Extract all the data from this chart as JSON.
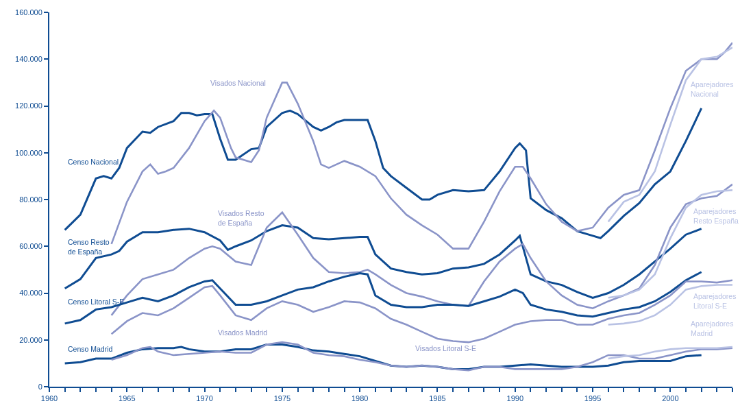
{
  "chart_data": {
    "type": "line",
    "xlim": [
      1960,
      2004
    ],
    "xticks": [
      1960,
      {
        "value": 1961,
        "label": null
      },
      {
        "value": 1962,
        "label": null
      },
      {
        "value": 1963,
        "label": null
      },
      {
        "value": 1964,
        "label": null
      },
      1965,
      {
        "value": 1966,
        "label": null
      },
      {
        "value": 1967,
        "label": null
      },
      {
        "value": 1968,
        "label": null
      },
      {
        "value": 1969,
        "label": null
      },
      1970,
      {
        "value": 1971,
        "label": null
      },
      {
        "value": 1972,
        "label": null
      },
      {
        "value": 1973,
        "label": null
      },
      {
        "value": 1974,
        "label": null
      },
      1975,
      {
        "value": 1976,
        "label": null
      },
      {
        "value": 1977,
        "label": null
      },
      {
        "value": 1978,
        "label": null
      },
      {
        "value": 1979,
        "label": null
      },
      1980,
      {
        "value": 1981,
        "label": null
      },
      {
        "value": 1982,
        "label": null
      },
      {
        "value": 1983,
        "label": null
      },
      {
        "value": 1984,
        "label": null
      },
      1985,
      {
        "value": 1986,
        "label": null
      },
      {
        "value": 1987,
        "label": null
      },
      {
        "value": 1988,
        "label": null
      },
      {
        "value": 1989,
        "label": null
      },
      1990,
      {
        "value": 1991,
        "label": null
      },
      {
        "value": 1992,
        "label": null
      },
      {
        "value": 1993,
        "label": null
      },
      {
        "value": 1994,
        "label": null
      },
      1995,
      {
        "value": 1996,
        "label": null
      },
      {
        "value": 1997,
        "label": null
      },
      {
        "value": 1998,
        "label": null
      },
      {
        "value": 1999,
        "label": null
      },
      2000,
      {
        "value": 2001,
        "label": null
      },
      {
        "value": 2002,
        "label": null
      },
      {
        "value": 2003,
        "label": null
      },
      {
        "value": 2004,
        "label": null
      }
    ],
    "ylim": [
      0,
      160000
    ],
    "yticks": [
      0,
      {
        "value": 20000,
        "label": "20.000"
      },
      {
        "value": 40000,
        "label": "40.000"
      },
      {
        "value": 60000,
        "label": "60.000"
      },
      {
        "value": 80000,
        "label": "80.000"
      },
      {
        "value": 100000,
        "label": "100.000"
      },
      {
        "value": 120000,
        "label": "120.000"
      },
      {
        "value": 140000,
        "label": "140.000"
      },
      {
        "value": 160000,
        "label": "160.000"
      }
    ],
    "grid": false,
    "legend": false,
    "marker": "none",
    "line_style": "solid",
    "series": [
      {
        "name": "Censo Nacional",
        "color": "#0f4c92",
        "x": [
          1961,
          1962,
          1963,
          1963.5,
          1964,
          1964.5,
          1965,
          1966,
          1966.5,
          1967,
          1968,
          1968.5,
          1969,
          1969.5,
          1970,
          1970.5,
          1971,
          1971.5,
          1972,
          1973,
          1973.5,
          1974,
          1975,
          1975.5,
          1976,
          1977,
          1977.5,
          1978,
          1978.5,
          1979,
          1980,
          1980.5,
          1981,
          1981.5,
          1982,
          1983,
          1984,
          1984.5,
          1985,
          1986,
          1987,
          1988,
          1989,
          1990,
          1990.3,
          1990.7,
          1991,
          1992,
          1993,
          1994,
          1995,
          1995.5,
          1996,
          1997,
          1998,
          1999,
          2000,
          2001,
          2002
        ],
        "values": [
          67000,
          73500,
          89000,
          90000,
          89000,
          93500,
          102000,
          109000,
          108500,
          111000,
          113500,
          117000,
          117000,
          116000,
          116500,
          116500,
          106000,
          97000,
          97000,
          101500,
          102000,
          111000,
          117000,
          118000,
          116500,
          111000,
          109500,
          111000,
          113000,
          114000,
          114000,
          114000,
          105000,
          93500,
          90000,
          85000,
          80000,
          80000,
          82000,
          84000,
          83500,
          84000,
          92000,
          102000,
          104000,
          101000,
          80500,
          75500,
          72000,
          66500,
          64500,
          63500,
          66500,
          73000,
          78500,
          86500,
          92000,
          105000,
          119000
        ]
      },
      {
        "name": "Visados Nacional",
        "color": "#8a94c8",
        "x": [
          1964,
          1965,
          1966,
          1966.5,
          1967,
          1967.5,
          1968,
          1969,
          1970,
          1970.6,
          1971,
          1971.7,
          1972,
          1973,
          1973.5,
          1974,
          1975,
          1975.3,
          1976,
          1977,
          1977.5,
          1978,
          1979,
          1980,
          1981,
          1982,
          1983,
          1984,
          1985,
          1986,
          1987,
          1988,
          1989,
          1990,
          1990.5,
          1991,
          1992,
          1993,
          1994,
          1995,
          1996,
          1997,
          1998,
          1999,
          2000,
          2001,
          2002,
          2003,
          2003.5,
          2004
        ],
        "values": [
          61000,
          79000,
          92000,
          95000,
          91000,
          92000,
          93500,
          102000,
          113500,
          118000,
          115000,
          102000,
          98000,
          96000,
          101000,
          115000,
          130000,
          130000,
          121000,
          105000,
          95000,
          93500,
          96500,
          94000,
          90000,
          80500,
          73500,
          69000,
          65000,
          59000,
          59000,
          70500,
          83500,
          94000,
          94000,
          89000,
          78000,
          70500,
          66500,
          68000,
          76500,
          82000,
          84000,
          101000,
          119000,
          135000,
          140000,
          140000,
          143000,
          147000
        ]
      },
      {
        "name": "Aparejadores\nNacional",
        "color": "#b9c2e4",
        "x": [
          1996,
          1997,
          1998,
          1999,
          2000,
          2001,
          2002,
          2003,
          2004
        ],
        "values": [
          70500,
          79000,
          82000,
          92000,
          112000,
          131000,
          140000,
          141000,
          145000
        ]
      },
      {
        "name": "Censo Resto\nde España",
        "color": "#0f4c92",
        "x": [
          1961,
          1962,
          1963,
          1964,
          1964.5,
          1965,
          1966,
          1967,
          1968,
          1969,
          1970,
          1971,
          1971.5,
          1972,
          1973,
          1974,
          1975,
          1976,
          1977,
          1978,
          1979,
          1980,
          1980.5,
          1981,
          1982,
          1983,
          1984,
          1985,
          1986,
          1987,
          1988,
          1989,
          1990,
          1990.3,
          1991,
          1992,
          1993,
          1994,
          1995,
          1996,
          1997,
          1998,
          1999,
          2000,
          2001,
          2002
        ],
        "values": [
          42000,
          46000,
          55000,
          56500,
          58000,
          62000,
          66000,
          66000,
          67000,
          67500,
          66000,
          62500,
          58500,
          60000,
          62500,
          66500,
          69000,
          68000,
          63500,
          63000,
          63500,
          64000,
          64000,
          56500,
          50500,
          49000,
          48000,
          48500,
          50500,
          51000,
          52500,
          56500,
          62500,
          64500,
          48000,
          45000,
          43500,
          40500,
          38000,
          40000,
          43500,
          48000,
          53500,
          59000,
          65000,
          67500
        ]
      },
      {
        "name": "Visados Resto\nde España",
        "color": "#8a94c8",
        "x": [
          1964,
          1965,
          1966,
          1967,
          1968,
          1969,
          1970,
          1970.5,
          1971,
          1972,
          1973,
          1974,
          1975,
          1976,
          1977,
          1978,
          1979,
          1980,
          1980.5,
          1981,
          1982,
          1983,
          1984,
          1985,
          1986,
          1987,
          1988,
          1989,
          1990,
          1990.5,
          1991,
          1992,
          1993,
          1994,
          1995,
          1996,
          1997,
          1998,
          1999,
          2000,
          2001,
          2002,
          2003,
          2004
        ],
        "values": [
          30500,
          39000,
          46000,
          48000,
          50000,
          55000,
          59000,
          60000,
          59000,
          53500,
          52000,
          68000,
          74500,
          65000,
          55000,
          49000,
          48500,
          49000,
          50000,
          48000,
          43500,
          40000,
          38500,
          36500,
          35000,
          34500,
          45000,
          53500,
          59000,
          61000,
          55000,
          45000,
          39000,
          35000,
          33500,
          36500,
          39000,
          42000,
          52000,
          68000,
          78000,
          80500,
          81500,
          86500
        ]
      },
      {
        "name": "Aparejadores\nResto España",
        "color": "#b9c2e4",
        "x": [
          1996,
          1997,
          1998,
          1999,
          2000,
          2001,
          2002,
          2003,
          2004
        ],
        "values": [
          38000,
          39000,
          41500,
          48000,
          63500,
          76500,
          82000,
          83500,
          84000
        ]
      },
      {
        "name": "Censo Litoral S-E",
        "color": "#0f4c92",
        "x": [
          1961,
          1962,
          1963,
          1964,
          1965,
          1966,
          1967,
          1968,
          1969,
          1970,
          1970.5,
          1971,
          1972,
          1973,
          1974,
          1975,
          1976,
          1977,
          1978,
          1979,
          1980,
          1980.5,
          1981,
          1982,
          1983,
          1984,
          1985,
          1986,
          1987,
          1988,
          1989,
          1990,
          1990.5,
          1991,
          1992,
          1993,
          1994,
          1995,
          1996,
          1997,
          1998,
          1999,
          2000,
          2001,
          2002
        ],
        "values": [
          27000,
          28500,
          33000,
          34000,
          36000,
          38000,
          36500,
          39000,
          42500,
          45000,
          45500,
          42000,
          35000,
          35000,
          36500,
          39000,
          41500,
          42500,
          45000,
          47000,
          48500,
          48000,
          39000,
          35000,
          34000,
          34000,
          35000,
          35000,
          34500,
          36500,
          38500,
          41500,
          40000,
          35000,
          33000,
          32000,
          30500,
          30000,
          31500,
          33000,
          34000,
          36500,
          40500,
          45500,
          49000
        ]
      },
      {
        "name": "Visados Litoral S-E",
        "color": "#8a94c8",
        "x": [
          1964,
          1965,
          1966,
          1967,
          1968,
          1969,
          1970,
          1970.5,
          1971,
          1972,
          1973,
          1974,
          1975,
          1976,
          1977,
          1978,
          1979,
          1980,
          1981,
          1982,
          1983,
          1984,
          1985,
          1986,
          1987,
          1988,
          1989,
          1990,
          1991,
          1992,
          1993,
          1994,
          1995,
          1996,
          1997,
          1998,
          1999,
          2000,
          2001,
          2002,
          2003,
          2004
        ],
        "values": [
          22500,
          28000,
          31500,
          30500,
          33500,
          38000,
          42500,
          43000,
          39000,
          30500,
          28500,
          33500,
          36500,
          35000,
          32000,
          34000,
          36500,
          36000,
          33500,
          29000,
          26500,
          23500,
          20500,
          19500,
          19000,
          20500,
          23500,
          26500,
          28000,
          28500,
          28500,
          26500,
          26500,
          29000,
          30500,
          31500,
          35000,
          39000,
          45000,
          45000,
          44500,
          45500
        ]
      },
      {
        "name": "Aparejadores\nLitoral S-E",
        "color": "#b9c2e4",
        "x": [
          1996,
          1997,
          1998,
          1999,
          2000,
          2001,
          2002,
          2003,
          2004
        ],
        "values": [
          26500,
          27000,
          28000,
          30500,
          35000,
          41500,
          43000,
          43500,
          43500
        ]
      },
      {
        "name": "Censo Madrid",
        "color": "#0f4c92",
        "x": [
          1961,
          1962,
          1963,
          1964,
          1965,
          1966,
          1967,
          1968,
          1968.5,
          1969,
          1970,
          1971,
          1972,
          1973,
          1974,
          1975,
          1976,
          1977,
          1978,
          1979,
          1980,
          1981,
          1982,
          1983,
          1984,
          1985,
          1986,
          1987,
          1988,
          1989,
          1990,
          1991,
          1992,
          1993,
          1994,
          1995,
          1996,
          1997,
          1998,
          1999,
          2000,
          2001,
          2002
        ],
        "values": [
          10000,
          10500,
          12000,
          12000,
          14500,
          16000,
          16500,
          16500,
          17000,
          16000,
          15000,
          15000,
          16000,
          16000,
          18000,
          18000,
          17000,
          15500,
          15000,
          14000,
          13000,
          11000,
          9000,
          8500,
          9000,
          8500,
          7500,
          7500,
          8500,
          8500,
          9000,
          9500,
          9000,
          8500,
          8500,
          8500,
          9000,
          10500,
          11000,
          11000,
          11000,
          13000,
          13500
        ]
      },
      {
        "name": "Visados Madrid",
        "color": "#8a94c8",
        "x": [
          1964,
          1965,
          1966,
          1966.5,
          1967,
          1968,
          1969,
          1970,
          1971,
          1972,
          1973,
          1974,
          1975,
          1976,
          1977,
          1978,
          1979,
          1980,
          1981,
          1982,
          1983,
          1984,
          1985,
          1986,
          1987,
          1988,
          1989,
          1990,
          1991,
          1992,
          1993,
          1994,
          1995,
          1996,
          1997,
          1998,
          1999,
          2000,
          2001,
          2002,
          2003,
          2004
        ],
        "values": [
          11500,
          13500,
          16500,
          17000,
          15000,
          13500,
          14000,
          14500,
          15000,
          14500,
          14500,
          18000,
          19000,
          18000,
          14500,
          13500,
          13000,
          11500,
          10500,
          9000,
          8500,
          9000,
          8500,
          7500,
          7000,
          8500,
          8500,
          7500,
          7500,
          7500,
          7500,
          8500,
          10500,
          13500,
          13500,
          12000,
          12000,
          13500,
          15000,
          16000,
          16000,
          16500
        ]
      },
      {
        "name": "Aparejadores\nMadrid",
        "color": "#b9c2e4",
        "x": [
          1996,
          1997,
          1998,
          1999,
          2000,
          2001,
          2002,
          2003,
          2004
        ],
        "values": [
          12000,
          13000,
          13500,
          15000,
          16000,
          16500,
          16500,
          16500,
          17000
        ]
      }
    ]
  }
}
